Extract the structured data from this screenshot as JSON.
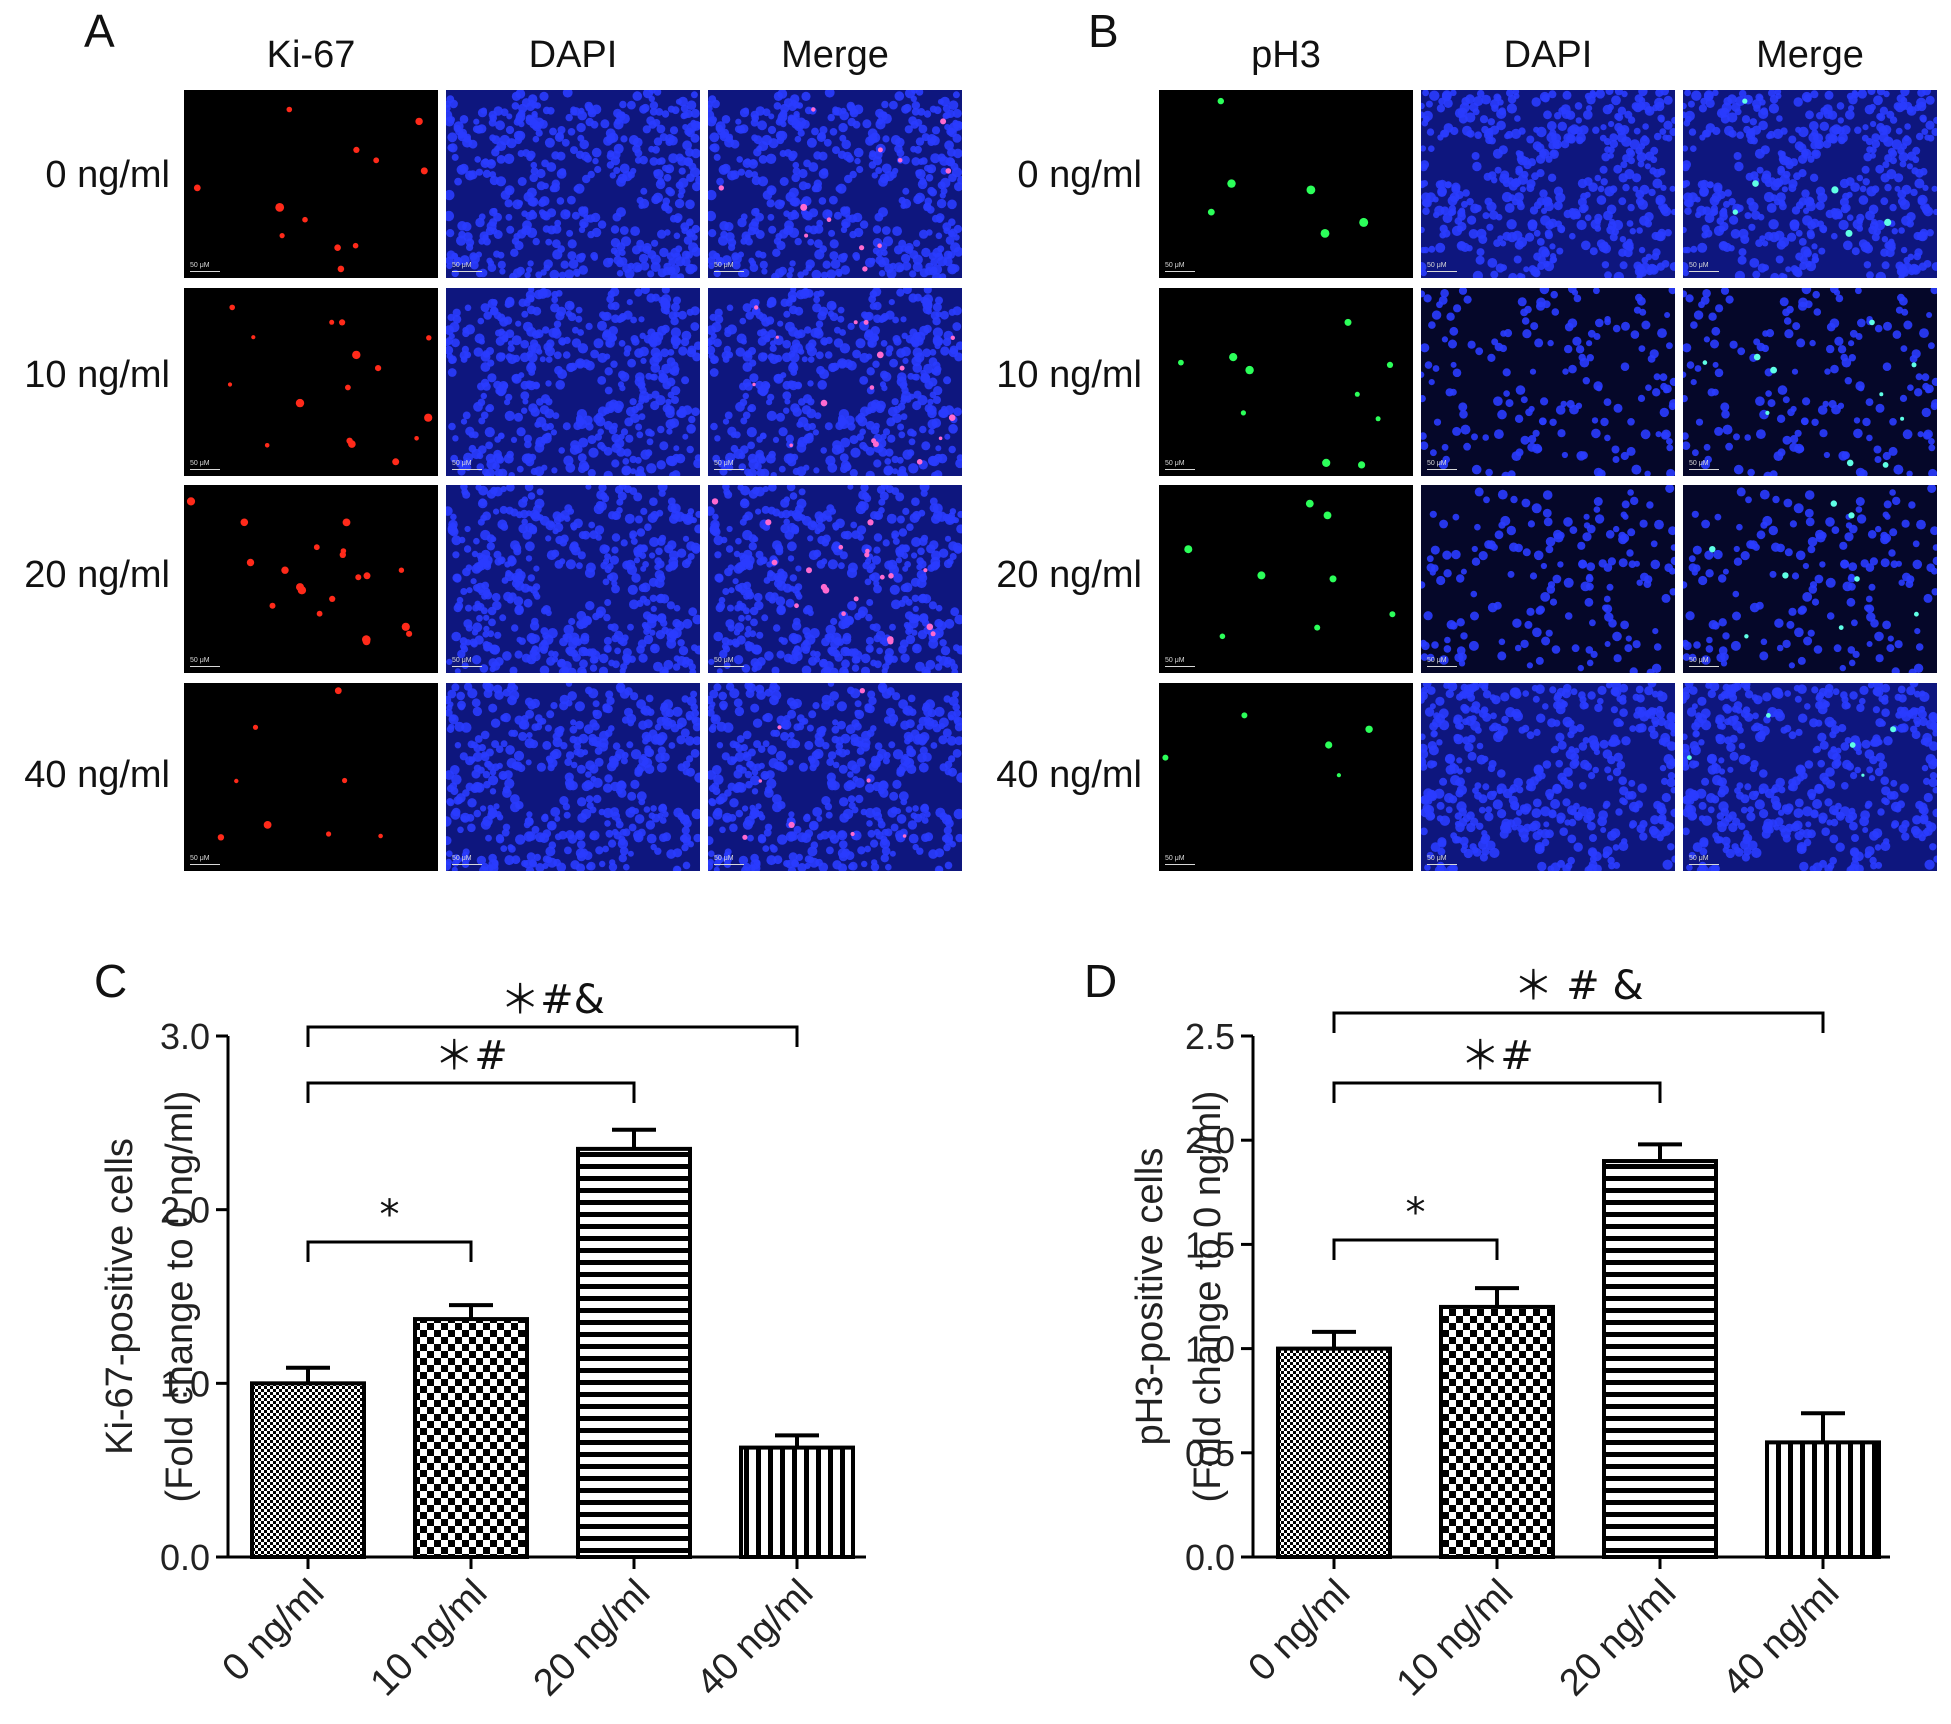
{
  "panels": {
    "A": {
      "label": "A",
      "columns": [
        "Ki-67",
        "DAPI",
        "Merge"
      ],
      "rows": [
        "0 ng/ml",
        "10 ng/ml",
        "20 ng/ml",
        "40 ng/ml"
      ],
      "marker_color": "#ff2a1a"
    },
    "B": {
      "label": "B",
      "columns": [
        "pH3",
        "DAPI",
        "Merge"
      ],
      "rows": [
        "0 ng/ml",
        "10 ng/ml",
        "20 ng/ml",
        "40 ng/ml"
      ],
      "marker_color": "#2cff5a"
    },
    "C": {
      "label": "C"
    },
    "D": {
      "label": "D"
    }
  },
  "scale_bar": "50 μM",
  "colors": {
    "dapi": "#1a28e6",
    "background": "#000000",
    "bars": "#000000"
  },
  "chart_data": [
    {
      "type": "bar",
      "panel": "C",
      "categories": [
        "0 ng/ml",
        "10 ng/ml",
        "20 ng/ml",
        "40 ng/ml"
      ],
      "values": [
        1.0,
        1.37,
        2.35,
        0.63
      ],
      "errors": [
        0.09,
        0.08,
        0.11,
        0.07
      ],
      "patterns": [
        "fine-check",
        "checker",
        "horizontal-stripes",
        "vertical-stripes"
      ],
      "ylabel_line1": "Ki-67-positive cells",
      "ylabel_line2": "(Fold change to 0 ng/ml)",
      "yticks": [
        "0.0",
        "1.0",
        "2.0",
        "3.0"
      ],
      "ylim": [
        0,
        3.0
      ],
      "significance": [
        {
          "from": 0,
          "to": 1,
          "label": "*"
        },
        {
          "from": 0,
          "to": 2,
          "label": "＊#"
        },
        {
          "from": 0,
          "to": 3,
          "label": "＊#&"
        }
      ]
    },
    {
      "type": "bar",
      "panel": "D",
      "categories": [
        "0 ng/ml",
        "10 ng/ml",
        "20 ng/ml",
        "40 ng/ml"
      ],
      "values": [
        1.0,
        1.2,
        1.9,
        0.55
      ],
      "errors": [
        0.08,
        0.09,
        0.08,
        0.14
      ],
      "patterns": [
        "fine-check",
        "checker",
        "horizontal-stripes",
        "vertical-stripes"
      ],
      "ylabel_line1": "pH3-positive cells",
      "ylabel_line2": "(Fold change to 0 ng/ml)",
      "yticks": [
        "0.0",
        "0.5",
        "1.0",
        "1.5",
        "2.0",
        "2.5"
      ],
      "ylim": [
        0,
        2.5
      ],
      "significance": [
        {
          "from": 0,
          "to": 1,
          "label": "*"
        },
        {
          "from": 0,
          "to": 2,
          "label": "＊#"
        },
        {
          "from": 0,
          "to": 3,
          "label": "＊ # &"
        }
      ]
    }
  ]
}
